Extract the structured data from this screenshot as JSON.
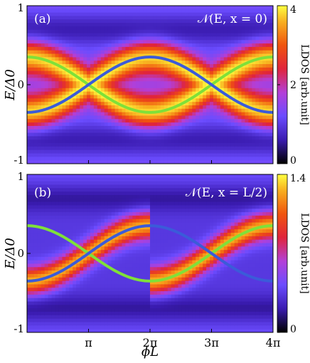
{
  "chart_data": [
    {
      "type": "heatmap",
      "panel_label": "(a)",
      "annotation": "𝒩(E, x = 0)",
      "xlabel": "ϕL",
      "ylabel": "E/Δ0",
      "ylim": [
        -1,
        1
      ],
      "xlim": [
        0,
        12.566
      ],
      "yticks": [
        "1",
        "0",
        "-1"
      ],
      "xticks": [],
      "colorbar_label": "LDOS [arb.unit]",
      "colorbar_ticks": [
        "4",
        "2",
        "0"
      ],
      "colorbar_range": [
        0,
        4
      ],
      "colors": {
        "green": "#7fe03a",
        "blue": "#3b5bd9"
      },
      "series": [
        {
          "color": "green",
          "function": "0.35*cos(x/2)",
          "x_range": [
            0,
            12.566
          ]
        },
        {
          "color": "blue",
          "function": "-0.35*cos(x/2)",
          "x_range": [
            0,
            12.566
          ]
        }
      ]
    },
    {
      "type": "heatmap",
      "panel_label": "(b)",
      "annotation": "𝒩(E, x = L/2)",
      "xlabel": "ϕL",
      "ylabel": "E/Δ0",
      "ylim": [
        -1,
        1
      ],
      "xlim": [
        0,
        12.566
      ],
      "yticks": [
        "1",
        "0",
        "-1"
      ],
      "xticks": [
        "π",
        "2π",
        "3π",
        "4π"
      ],
      "colorbar_label": "LDOS [arb.unit]",
      "colorbar_ticks": [
        "1.4",
        "0"
      ],
      "colorbar_range": [
        0,
        1.4
      ],
      "colors": {
        "green": "#7fe03a",
        "blue": "#3b5bd9"
      },
      "series": [
        {
          "color": "green",
          "function": "0.35*cos(x/2)",
          "x_range": [
            0,
            12.566
          ]
        },
        {
          "color": "blue",
          "function": "-0.35*cos(x/2)",
          "x_range": [
            0,
            12.566
          ]
        }
      ]
    }
  ]
}
